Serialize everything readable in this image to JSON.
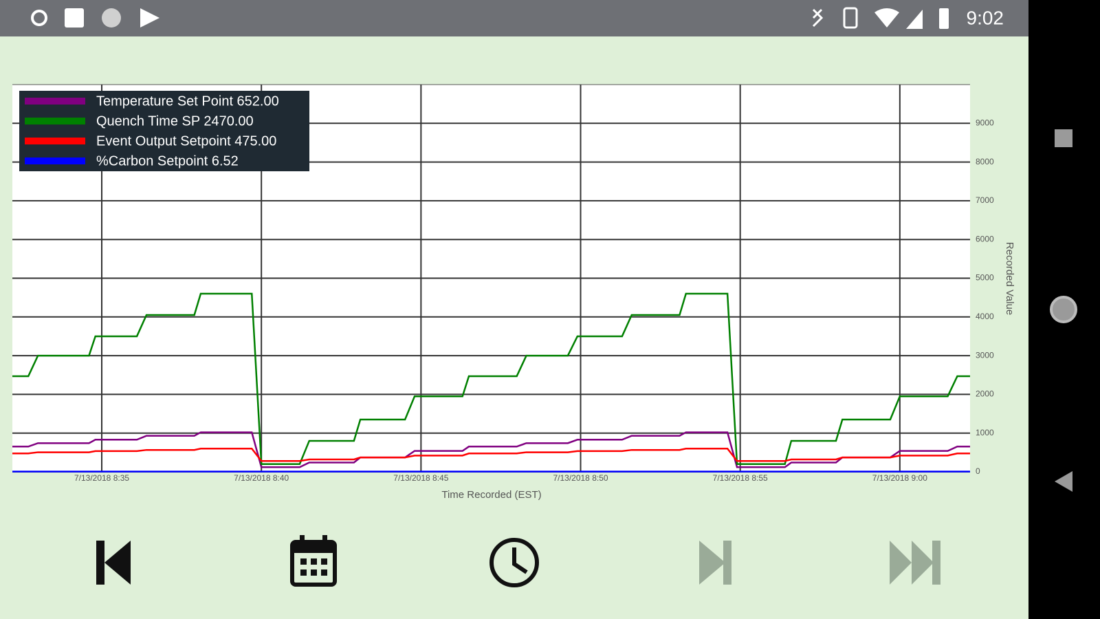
{
  "status_bar": {
    "time": "9:02"
  },
  "chart_data": {
    "type": "line",
    "x_label": "Time Recorded (EST)",
    "y_label": "Recorded Value",
    "x": [
      512.2,
      512.7,
      513.0,
      514.6,
      514.8,
      516.1,
      516.4,
      517.9,
      518.1,
      519.7,
      520.0,
      521.2,
      521.5,
      522.9,
      523.1,
      524.5,
      524.8,
      526.3,
      526.5,
      528.0,
      528.3,
      529.6,
      529.9,
      531.3,
      531.6,
      533.1,
      533.3,
      534.6,
      534.9,
      536.4,
      536.6,
      538.0,
      538.2,
      539.7,
      540.0,
      541.5,
      541.8,
      542.2
    ],
    "series": [
      {
        "name": "Temperature Set Point 652.00",
        "color": "#800080",
        "values": [
          652,
          652,
          740,
          740,
          830,
          830,
          930,
          930,
          1020,
          1020,
          120,
          120,
          240,
          240,
          370,
          370,
          540,
          540,
          652,
          652,
          740,
          740,
          830,
          830,
          930,
          930,
          1020,
          1020,
          120,
          120,
          240,
          240,
          370,
          370,
          540,
          540,
          652,
          652
        ]
      },
      {
        "name": "Quench Time SP 2470.00",
        "color": "#008000",
        "values": [
          2470,
          2470,
          3000,
          3000,
          3500,
          3500,
          4050,
          4050,
          4600,
          4600,
          200,
          200,
          800,
          800,
          1350,
          1350,
          1950,
          1950,
          2470,
          2470,
          3000,
          3000,
          3500,
          3500,
          4050,
          4050,
          4600,
          4600,
          200,
          200,
          800,
          800,
          1350,
          1350,
          1950,
          1950,
          2470,
          2470
        ]
      },
      {
        "name": "Event Output Setpoint 475.00",
        "color": "#ff0000",
        "values": [
          475,
          475,
          505,
          505,
          535,
          535,
          565,
          565,
          600,
          600,
          280,
          280,
          320,
          320,
          370,
          370,
          420,
          420,
          475,
          475,
          505,
          505,
          535,
          535,
          565,
          565,
          600,
          600,
          280,
          280,
          320,
          320,
          370,
          370,
          420,
          420,
          475,
          475
        ]
      },
      {
        "name": "%Carbon Setpoint 6.52",
        "color": "#0000ff",
        "values": [
          6.52,
          6.52,
          6.52,
          6.52,
          6.52,
          6.52,
          6.52,
          6.52,
          6.52,
          6.52,
          6.52,
          6.52,
          6.52,
          6.52,
          6.52,
          6.52,
          6.52,
          6.52,
          6.52,
          6.52,
          6.52,
          6.52,
          6.52,
          6.52,
          6.52,
          6.52,
          6.52,
          6.52,
          6.52,
          6.52,
          6.52,
          6.52,
          6.52,
          6.52,
          6.52,
          6.52,
          6.52,
          6.52
        ]
      }
    ],
    "xlim": [
      512.2,
      542.2
    ],
    "xticks": [
      {
        "value": 515,
        "label": "7/13/2018 8:35"
      },
      {
        "value": 520,
        "label": "7/13/2018 8:40"
      },
      {
        "value": 525,
        "label": "7/13/2018 8:45"
      },
      {
        "value": 530,
        "label": "7/13/2018 8:50"
      },
      {
        "value": 535,
        "label": "7/13/2018 8:55"
      },
      {
        "value": 540,
        "label": "7/13/2018 9:00"
      }
    ],
    "ylim": [
      0,
      10000
    ],
    "yticks": [
      0,
      1000,
      2000,
      3000,
      4000,
      5000,
      6000,
      7000,
      8000,
      9000
    ],
    "grid": true,
    "legend": "top-left"
  }
}
